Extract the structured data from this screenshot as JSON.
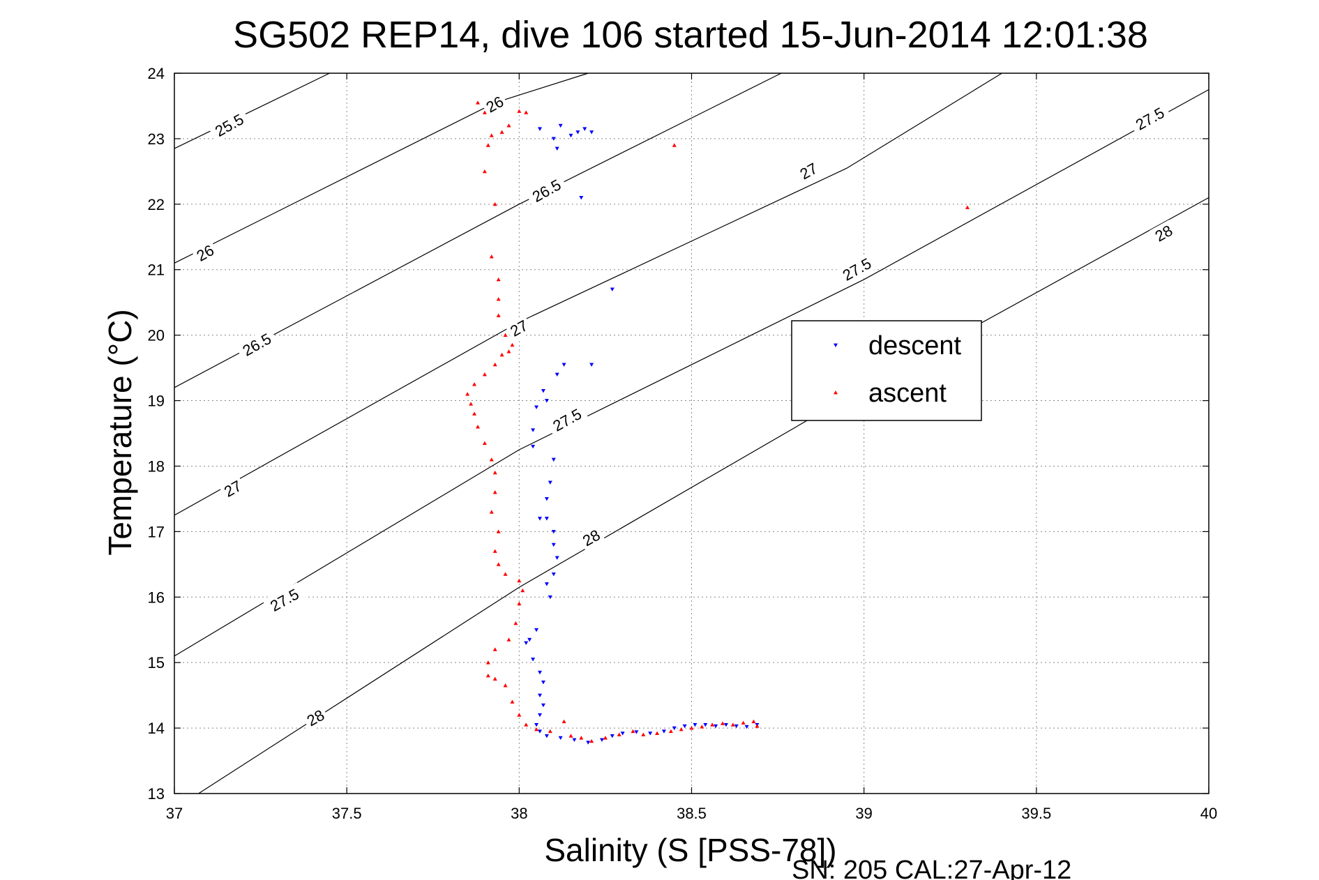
{
  "chart_data": {
    "type": "scatter",
    "title": "SG502 REP14, dive 106 started 15-Jun-2014 12:01:38",
    "xlabel": "Salinity (S [PSS-78])",
    "ylabel": "Temperature (°C)",
    "footer": "SN: 205  CAL:27-Apr-12",
    "xlim": [
      37,
      40
    ],
    "ylim": [
      13,
      24
    ],
    "xticks": [
      "37",
      "37.5",
      "38",
      "38.5",
      "39",
      "39.5",
      "40"
    ],
    "yticks": [
      "13",
      "14",
      "15",
      "16",
      "17",
      "18",
      "19",
      "20",
      "21",
      "22",
      "23",
      "24"
    ],
    "grid": true,
    "legend_position": "right",
    "isopycnals": [
      {
        "label": "25.5",
        "levels": [
          25.5
        ],
        "points": [
          [
            37,
            22.85
          ],
          [
            37.45,
            24.0
          ]
        ]
      },
      {
        "label": "26",
        "levels": [
          26.0
        ],
        "points": [
          [
            37,
            21.1
          ],
          [
            37.93,
            23.55
          ],
          [
            38.2,
            24.0
          ]
        ]
      },
      {
        "label": "26.5",
        "levels": [
          26.5
        ],
        "points": [
          [
            37,
            19.2
          ],
          [
            38.0,
            22.0
          ],
          [
            38.76,
            24.0
          ]
        ]
      },
      {
        "label": "27",
        "levels": [
          27.0
        ],
        "points": [
          [
            37,
            17.25
          ],
          [
            38.0,
            20.2
          ],
          [
            38.95,
            22.55
          ],
          [
            39.4,
            24.0
          ]
        ]
      },
      {
        "label": "27.5",
        "levels": [
          27.5
        ],
        "points": [
          [
            37,
            15.1
          ],
          [
            38.0,
            18.25
          ],
          [
            39.0,
            20.85
          ],
          [
            40.0,
            23.75
          ]
        ]
      },
      {
        "label": "28",
        "levels": [
          28.0
        ],
        "points": [
          [
            37.07,
            13.0
          ],
          [
            38.0,
            16.15
          ],
          [
            39.0,
            19.2
          ],
          [
            40.0,
            22.1
          ]
        ]
      }
    ],
    "contour_labels": [
      {
        "text": "25.5",
        "at": [
          37.16,
          23.2
        ]
      },
      {
        "text": "26",
        "at": [
          37.09,
          21.25
        ]
      },
      {
        "text": "26",
        "at": [
          37.93,
          23.52
        ]
      },
      {
        "text": "26.5",
        "at": [
          37.24,
          19.85
        ]
      },
      {
        "text": "26.5",
        "at": [
          38.08,
          22.2
        ]
      },
      {
        "text": "27",
        "at": [
          37.17,
          17.65
        ]
      },
      {
        "text": "27",
        "at": [
          38.0,
          20.1
        ]
      },
      {
        "text": "27",
        "at": [
          38.84,
          22.5
        ]
      },
      {
        "text": "27.5",
        "at": [
          37.32,
          15.95
        ]
      },
      {
        "text": "27.5",
        "at": [
          38.14,
          18.7
        ]
      },
      {
        "text": "27.5",
        "at": [
          38.98,
          21.0
        ]
      },
      {
        "text": "27.5",
        "at": [
          39.83,
          23.3
        ]
      },
      {
        "text": "28",
        "at": [
          37.41,
          14.15
        ]
      },
      {
        "text": "28",
        "at": [
          38.21,
          16.9
        ]
      },
      {
        "text": "28",
        "at": [
          39.87,
          21.55
        ]
      }
    ],
    "series": [
      {
        "name": "descent",
        "color": "#0000ff",
        "marker": "triangle-down",
        "points": [
          [
            38.06,
            23.15
          ],
          [
            38.12,
            23.2
          ],
          [
            38.15,
            23.05
          ],
          [
            38.17,
            23.1
          ],
          [
            38.19,
            23.15
          ],
          [
            38.21,
            23.1
          ],
          [
            38.1,
            23.0
          ],
          [
            38.11,
            22.85
          ],
          [
            38.18,
            22.1
          ],
          [
            38.27,
            20.7
          ],
          [
            38.13,
            19.55
          ],
          [
            38.11,
            19.4
          ],
          [
            38.07,
            19.15
          ],
          [
            38.21,
            19.55
          ],
          [
            38.08,
            19.0
          ],
          [
            38.05,
            18.9
          ],
          [
            38.04,
            18.55
          ],
          [
            38.04,
            18.3
          ],
          [
            38.1,
            18.1
          ],
          [
            38.09,
            17.75
          ],
          [
            38.08,
            17.5
          ],
          [
            38.06,
            17.2
          ],
          [
            38.08,
            17.2
          ],
          [
            38.1,
            17.0
          ],
          [
            38.1,
            16.8
          ],
          [
            38.11,
            16.6
          ],
          [
            38.1,
            16.35
          ],
          [
            38.09,
            16.0
          ],
          [
            38.08,
            16.2
          ],
          [
            38.05,
            15.5
          ],
          [
            38.03,
            15.35
          ],
          [
            38.02,
            15.3
          ],
          [
            38.04,
            15.05
          ],
          [
            38.06,
            14.85
          ],
          [
            38.07,
            14.7
          ],
          [
            38.06,
            14.5
          ],
          [
            38.07,
            14.35
          ],
          [
            38.06,
            14.2
          ],
          [
            38.05,
            14.05
          ],
          [
            38.06,
            13.95
          ],
          [
            38.08,
            13.88
          ],
          [
            38.12,
            13.85
          ],
          [
            38.16,
            13.82
          ],
          [
            38.2,
            13.78
          ],
          [
            38.24,
            13.82
          ],
          [
            38.27,
            13.88
          ],
          [
            38.3,
            13.92
          ],
          [
            38.34,
            13.94
          ],
          [
            38.38,
            13.92
          ],
          [
            38.42,
            13.95
          ],
          [
            38.45,
            14.0
          ],
          [
            38.48,
            14.03
          ],
          [
            38.51,
            14.05
          ],
          [
            38.54,
            14.05
          ],
          [
            38.57,
            14.03
          ],
          [
            38.6,
            14.05
          ],
          [
            38.63,
            14.03
          ],
          [
            38.66,
            14.02
          ],
          [
            38.69,
            14.05
          ]
        ]
      },
      {
        "name": "ascent",
        "color": "#ff0000",
        "marker": "triangle-up",
        "points": [
          [
            37.88,
            23.55
          ],
          [
            37.9,
            23.4
          ],
          [
            38.0,
            23.42
          ],
          [
            38.02,
            23.4
          ],
          [
            37.97,
            23.2
          ],
          [
            37.95,
            23.1
          ],
          [
            37.92,
            23.05
          ],
          [
            37.91,
            22.9
          ],
          [
            37.9,
            22.5
          ],
          [
            37.93,
            22.0
          ],
          [
            38.45,
            22.9
          ],
          [
            39.3,
            21.95
          ],
          [
            37.92,
            21.2
          ],
          [
            37.94,
            20.85
          ],
          [
            37.94,
            20.55
          ],
          [
            37.94,
            20.3
          ],
          [
            37.96,
            20.0
          ],
          [
            37.98,
            19.85
          ],
          [
            37.97,
            19.75
          ],
          [
            37.95,
            19.7
          ],
          [
            37.93,
            19.55
          ],
          [
            37.9,
            19.4
          ],
          [
            37.87,
            19.25
          ],
          [
            37.85,
            19.1
          ],
          [
            37.86,
            18.95
          ],
          [
            37.87,
            18.8
          ],
          [
            37.88,
            18.6
          ],
          [
            37.9,
            18.35
          ],
          [
            37.92,
            18.1
          ],
          [
            37.93,
            17.9
          ],
          [
            37.93,
            17.6
          ],
          [
            37.92,
            17.3
          ],
          [
            37.94,
            17.0
          ],
          [
            37.93,
            16.7
          ],
          [
            37.94,
            16.5
          ],
          [
            37.96,
            16.35
          ],
          [
            38.0,
            16.25
          ],
          [
            38.01,
            16.1
          ],
          [
            38.0,
            15.9
          ],
          [
            37.99,
            15.6
          ],
          [
            37.97,
            15.35
          ],
          [
            37.93,
            15.2
          ],
          [
            37.91,
            15.0
          ],
          [
            37.91,
            14.8
          ],
          [
            37.93,
            14.75
          ],
          [
            37.96,
            14.65
          ],
          [
            37.98,
            14.4
          ],
          [
            38.0,
            14.2
          ],
          [
            38.02,
            14.05
          ],
          [
            38.05,
            13.98
          ],
          [
            38.09,
            13.95
          ],
          [
            38.13,
            14.1
          ],
          [
            38.15,
            13.88
          ],
          [
            38.18,
            13.85
          ],
          [
            38.21,
            13.8
          ],
          [
            38.25,
            13.85
          ],
          [
            38.29,
            13.9
          ],
          [
            38.33,
            13.95
          ],
          [
            38.36,
            13.9
          ],
          [
            38.4,
            13.92
          ],
          [
            38.44,
            13.95
          ],
          [
            38.47,
            13.98
          ],
          [
            38.5,
            14.0
          ],
          [
            38.53,
            14.02
          ],
          [
            38.56,
            14.05
          ],
          [
            38.59,
            14.07
          ],
          [
            38.62,
            14.05
          ],
          [
            38.65,
            14.08
          ],
          [
            38.68,
            14.1
          ],
          [
            38.69,
            14.03
          ]
        ]
      }
    ]
  }
}
